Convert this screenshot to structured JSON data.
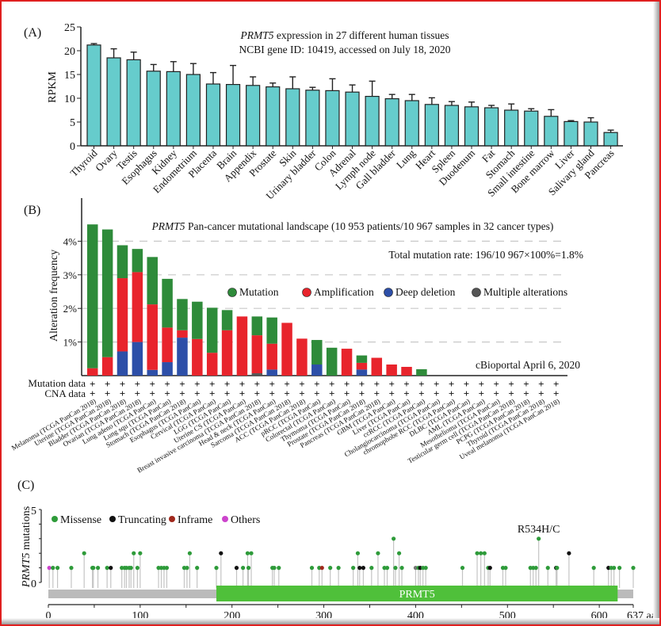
{
  "colors": {
    "bar": "#66cccc",
    "mutation": "#2e8b3a",
    "amplification": "#e8242c",
    "deep_deletion": "#2d4fa8",
    "multiple": "#555555",
    "missense": "#2e9b3a",
    "truncating": "#111111",
    "inframe": "#a0281c",
    "others": "#cc44cc",
    "domain": "#4fc03a",
    "backbone": "#bbbbbb"
  },
  "chart_data": [
    {
      "panel": "(A)",
      "type": "bar",
      "title_gene": "PRMT5",
      "title_rest": " expression in 27 different human tissues",
      "subtitle": "NCBI gene ID: 10419, accessed on July 18, 2020",
      "ylabel": "RPKM",
      "ylim": [
        0,
        25
      ],
      "yticks": [
        "0",
        "5",
        "10",
        "15",
        "20",
        "25"
      ],
      "categories": [
        "Thyroid",
        "Ovary",
        "Testis",
        "Esophagus",
        "Kidney",
        "Endometrium",
        "Placenta",
        "Brain",
        "Appendix",
        "Prostate",
        "Skin",
        "Urinary bladder",
        "Colon",
        "Adrenal",
        "Lymph node",
        "Gall bladder",
        "Lung",
        "Heart",
        "Spleen",
        "Duodenum",
        "Fat",
        "Stomach",
        "Small intestine",
        "Bone marrow",
        "Liver",
        "Salivary gland",
        "Pancreas"
      ],
      "values": [
        21.2,
        18.5,
        18.1,
        15.7,
        15.6,
        15.0,
        13.0,
        12.9,
        12.7,
        12.4,
        12.0,
        11.7,
        11.6,
        11.3,
        10.4,
        9.9,
        9.5,
        8.7,
        8.5,
        8.2,
        8.0,
        7.5,
        7.3,
        6.2,
        5.1,
        5.0,
        2.8
      ],
      "error_upper": [
        21.5,
        20.4,
        19.7,
        17.1,
        17.7,
        17.3,
        15.4,
        16.9,
        14.5,
        13.2,
        14.5,
        12.3,
        14.1,
        12.8,
        13.6,
        10.8,
        10.8,
        10.1,
        9.3,
        9.2,
        8.5,
        8.8,
        7.8,
        7.6,
        5.3,
        5.9,
        3.3
      ]
    },
    {
      "panel": "(B)",
      "type": "stacked-bar",
      "title_gene": "PRMT5",
      "title_rest": " Pan-cancer mutational landscape (10 953 patients/10 967 samples in 32 cancer types)",
      "annotation": "Total mutation rate: 196/10 967×100%=1.8%",
      "source": "cBioportal April 6, 2020",
      "ylabel": "Alteration frequency",
      "ylim": [
        0,
        4.6
      ],
      "yticks": [
        "1%",
        "2%",
        "3%",
        "4%"
      ],
      "grid": "dashed",
      "legend": [
        "Mutation",
        "Amplification",
        "Deep deletion",
        "Multiple alterations"
      ],
      "row_labels": [
        "Mutation data",
        "CNA data"
      ],
      "row_marker": "+",
      "categories": [
        "Melanoma (TCGA PanCan 2018)",
        "Uterine (TCGA PanCan 2018)",
        "Bladder (TCGA PanCan 2018)",
        "Ovarian (TCGA PanCan 2018)",
        "Lung adeno (TCGA PanCan)",
        "Lung squ (TCGA PanCan)",
        "Stomach (TCGA PanCan 2018)",
        "Esophagus (TCGA PanCan)",
        "Cervical (TCGA PanCan)",
        "LGG (TCGA PanCan)",
        "Uterine CS (TCGA PanCan)",
        "Breast invasive carcinoma (TCGA PanCan 2018)",
        "Head & neck (TCGA PanCan)",
        "Sarcoma (TCGA PanCan 2018)",
        "ACC (TCGA PanCan 2018)",
        "pRCC (TCGA PanCan)",
        "Colorectal (TCGA PanCan)",
        "Thymoma (TCGA PanCan)",
        "Prostate (TCGA PanCan 2018)",
        "Pancreas (TCGA PanCan 2018)",
        "GBM (TCGA PanCan)",
        "Liver (TCGA PanCan)",
        "ccRCC (TCGA PanCan)",
        "Cholangiocarcinoma (TCGA PanCan)",
        "chromophobe RCC (TCGA PanCan)",
        "DLBC (TCGA PanCan)",
        "AML (TCGA PanCan)",
        "Mesothelioma (TCGA PanCan)",
        "Testicular germ cell (TCGA PanCan 2018)",
        "PCPG (TCGA PanCan 2018)",
        "Thyroid (TCGA PanCan 2018)",
        "Uveal melanoma (TCGA PanCan 2018)"
      ],
      "series": [
        {
          "name": "Deep deletion",
          "values": [
            0,
            0,
            0.72,
            1.0,
            0.17,
            0.4,
            1.13,
            0,
            0,
            0,
            0,
            0,
            0.18,
            0,
            0,
            0.33,
            0,
            0,
            0.18,
            0,
            0,
            0,
            0,
            0,
            0,
            0,
            0,
            0,
            0,
            0,
            0,
            0
          ]
        },
        {
          "name": "Multiple alterations",
          "values": [
            0,
            0,
            0,
            0,
            0,
            0,
            0,
            0,
            0,
            0,
            0,
            0.07,
            0,
            0,
            0,
            0,
            0,
            0,
            0,
            0,
            0,
            0,
            0,
            0,
            0,
            0,
            0,
            0,
            0,
            0,
            0,
            0
          ]
        },
        {
          "name": "Amplification",
          "values": [
            0.22,
            0.55,
            2.18,
            2.08,
            1.95,
            1.03,
            0.22,
            1.09,
            0.68,
            1.35,
            1.76,
            1.13,
            0.77,
            1.57,
            1.1,
            0,
            0,
            0.8,
            0.2,
            0.53,
            0.33,
            0.26,
            0,
            0,
            0,
            0,
            0,
            0,
            0,
            0,
            0,
            0
          ]
        },
        {
          "name": "Mutation",
          "values": [
            4.28,
            3.8,
            0.98,
            0.69,
            1.41,
            1.45,
            0.93,
            1.11,
            1.34,
            0.6,
            0,
            0.56,
            0.78,
            0,
            0,
            0.73,
            0.83,
            0,
            0.22,
            0,
            0,
            0,
            0.19,
            0,
            0,
            0,
            0,
            0,
            0,
            0,
            0,
            0
          ]
        }
      ]
    },
    {
      "panel": "(C)",
      "type": "lollipop",
      "ylabel_gene": "PRMT5",
      "ylabel_rest": " mutations",
      "ylim": [
        0,
        5
      ],
      "yticks": [
        "0",
        "5"
      ],
      "xlim": [
        0,
        637
      ],
      "xticks": [
        "0",
        "100",
        "200",
        "300",
        "400",
        "500",
        "600",
        "637 aa"
      ],
      "domain": {
        "label": "PRMT5",
        "start": 183,
        "end": 620
      },
      "hotspot_label": "R534H/C",
      "legend": [
        "Missense",
        "Truncating",
        "Inframe",
        "Others"
      ],
      "points": [
        [
          1,
          1,
          "others"
        ],
        [
          5,
          1,
          "missense"
        ],
        [
          10,
          1,
          "missense"
        ],
        [
          25,
          1,
          "missense"
        ],
        [
          39,
          2,
          "missense"
        ],
        [
          48,
          1,
          "missense"
        ],
        [
          49,
          1,
          "missense"
        ],
        [
          54,
          1,
          "missense"
        ],
        [
          64,
          1,
          "missense"
        ],
        [
          68,
          1,
          "truncating"
        ],
        [
          80,
          1,
          "missense"
        ],
        [
          83,
          1,
          "missense"
        ],
        [
          85,
          1,
          "missense"
        ],
        [
          88,
          1,
          "missense"
        ],
        [
          90,
          1,
          "missense"
        ],
        [
          93,
          2,
          "missense"
        ],
        [
          97,
          1,
          "missense"
        ],
        [
          100,
          2,
          "missense"
        ],
        [
          120,
          1,
          "missense"
        ],
        [
          123,
          1,
          "missense"
        ],
        [
          126,
          1,
          "missense"
        ],
        [
          129,
          1,
          "missense"
        ],
        [
          148,
          1,
          "missense"
        ],
        [
          151,
          1,
          "missense"
        ],
        [
          154,
          2,
          "missense"
        ],
        [
          162,
          1,
          "missense"
        ],
        [
          183,
          1,
          "missense"
        ],
        [
          188,
          2,
          "truncating"
        ],
        [
          205,
          1,
          "truncating"
        ],
        [
          212,
          1,
          "missense"
        ],
        [
          217,
          2,
          "missense"
        ],
        [
          218,
          1,
          "missense"
        ],
        [
          221,
          2,
          "missense"
        ],
        [
          244,
          1,
          "missense"
        ],
        [
          246,
          1,
          "missense"
        ],
        [
          251,
          1,
          "missense"
        ],
        [
          287,
          1,
          "missense"
        ],
        [
          295,
          1,
          "missense"
        ],
        [
          298,
          1,
          "inframe"
        ],
        [
          307,
          1,
          "missense"
        ],
        [
          316,
          1,
          "missense"
        ],
        [
          332,
          1,
          "missense"
        ],
        [
          337,
          2,
          "missense"
        ],
        [
          339,
          1,
          "truncating"
        ],
        [
          343,
          1,
          "truncating"
        ],
        [
          352,
          1,
          "missense"
        ],
        [
          359,
          2,
          "missense"
        ],
        [
          366,
          1,
          "missense"
        ],
        [
          369,
          1,
          "missense"
        ],
        [
          376,
          3,
          "missense"
        ],
        [
          378,
          1,
          "missense"
        ],
        [
          382,
          2,
          "missense"
        ],
        [
          385,
          1,
          "missense"
        ],
        [
          400,
          1,
          "multiple"
        ],
        [
          403,
          1,
          "missense"
        ],
        [
          405,
          1,
          "truncating"
        ],
        [
          408,
          1,
          "missense"
        ],
        [
          411,
          1,
          "missense"
        ],
        [
          451,
          1,
          "missense"
        ],
        [
          467,
          2,
          "missense"
        ],
        [
          471,
          2,
          "missense"
        ],
        [
          475,
          2,
          "missense"
        ],
        [
          479,
          1,
          "missense"
        ],
        [
          481,
          1,
          "truncating"
        ],
        [
          495,
          1,
          "missense"
        ],
        [
          498,
          1,
          "missense"
        ],
        [
          525,
          1,
          "missense"
        ],
        [
          528,
          1,
          "missense"
        ],
        [
          531,
          1,
          "missense"
        ],
        [
          534,
          3,
          "missense"
        ],
        [
          544,
          1,
          "missense"
        ],
        [
          553,
          1,
          "truncating"
        ],
        [
          554,
          1,
          "missense"
        ],
        [
          567,
          2,
          "truncating"
        ],
        [
          594,
          1,
          "missense"
        ],
        [
          610,
          1,
          "truncating"
        ],
        [
          613,
          1,
          "missense"
        ],
        [
          616,
          1,
          "missense"
        ],
        [
          622,
          1,
          "missense"
        ],
        [
          637,
          1,
          "missense"
        ]
      ]
    }
  ]
}
